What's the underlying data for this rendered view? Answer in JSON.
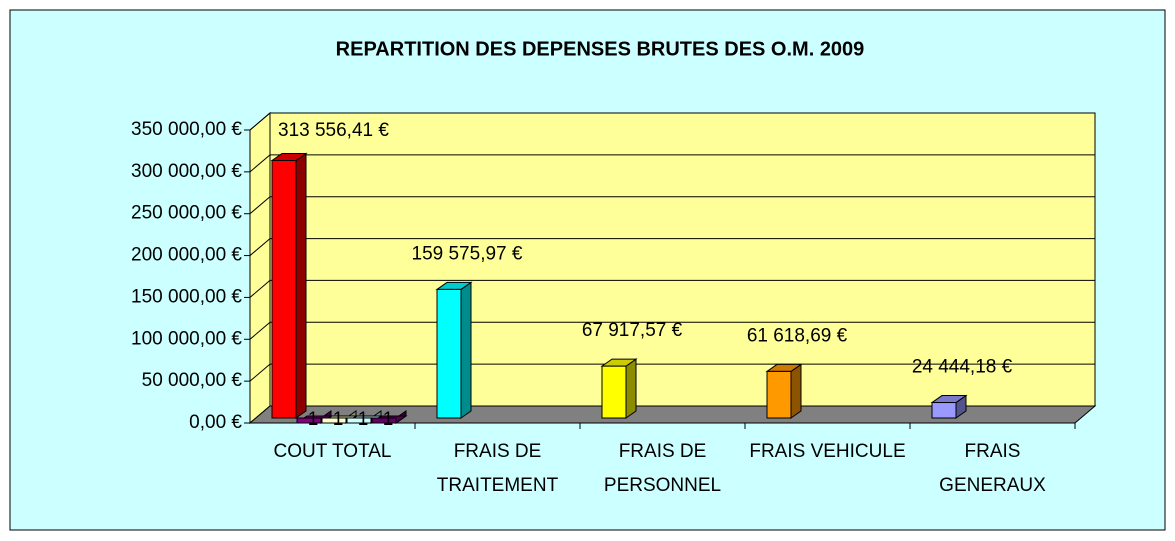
{
  "chart_data": {
    "type": "bar3d",
    "title": "REPARTITION DES DEPENSES BRUTES DES O.M. 2009",
    "categories": [
      "COUT TOTAL",
      "FRAIS DE TRAITEMENT",
      "FRAIS DE PERSONNEL",
      "FRAIS VEHICULE",
      "FRAIS GENERAUX"
    ],
    "series": [
      {
        "colors": [
          "#ff0000",
          "#00ffff",
          "#ffff00",
          "#ff9900",
          "#9999ff"
        ],
        "values": [
          313556.41,
          159575.97,
          67917.57,
          61618.69,
          24444.18
        ],
        "value_labels": [
          "313 556,41 €",
          "159 575,97 €",
          "67 917,57 €",
          "61 618,69 €",
          "24 444,18 €"
        ]
      },
      {
        "color": "#800080",
        "values": [
          1,
          null,
          null,
          null,
          null
        ]
      },
      {
        "color": "#ffffcc",
        "values": [
          1,
          null,
          null,
          null,
          null
        ]
      },
      {
        "color": "#ccffff",
        "values": [
          1,
          null,
          null,
          null,
          null
        ]
      },
      {
        "color": "#660066",
        "values": [
          1,
          null,
          null,
          null,
          null
        ]
      }
    ],
    "ylim": [
      0,
      350000
    ],
    "yticks": [
      {
        "value": 0,
        "label": "0,00 €"
      },
      {
        "value": 50000,
        "label": "50 000,00 €"
      },
      {
        "value": 100000,
        "label": "100 000,00 €"
      },
      {
        "value": 150000,
        "label": "150 000,00 €"
      },
      {
        "value": 200000,
        "label": "200 000,00 €"
      },
      {
        "value": 250000,
        "label": "250 000,00 €"
      },
      {
        "value": 300000,
        "label": "300 000,00 €"
      },
      {
        "value": 350000,
        "label": "350 000,00 €"
      }
    ],
    "grid": true
  }
}
